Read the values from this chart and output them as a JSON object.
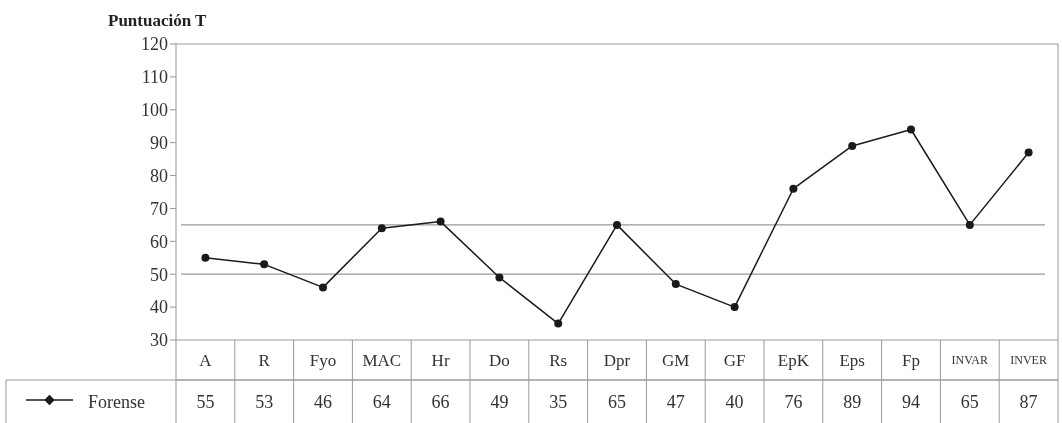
{
  "chart_data": {
    "type": "line",
    "ylabel": "Puntuación T",
    "categories": [
      "A",
      "R",
      "Fyo",
      "MAC",
      "Hr",
      "Do",
      "Rs",
      "Dpr",
      "GM",
      "GF",
      "EpK",
      "Eps",
      "Fp",
      "INVAR",
      "INVER"
    ],
    "series": [
      {
        "name": "Forense",
        "color": "#1a1a1a",
        "values": [
          55,
          53,
          46,
          64,
          66,
          49,
          35,
          65,
          47,
          40,
          76,
          89,
          94,
          65,
          87
        ]
      }
    ],
    "ylim": [
      30,
      120
    ],
    "yticks": [
      30,
      40,
      50,
      60,
      70,
      80,
      90,
      100,
      110,
      120
    ],
    "ref_lines": [
      {
        "axis": "y",
        "value": 65,
        "color": "#999999"
      },
      {
        "axis": "y",
        "value": 50,
        "color": "#999999"
      }
    ],
    "data_labels": true,
    "legend": "bottom",
    "marker": "circle",
    "line_style": "solid"
  }
}
